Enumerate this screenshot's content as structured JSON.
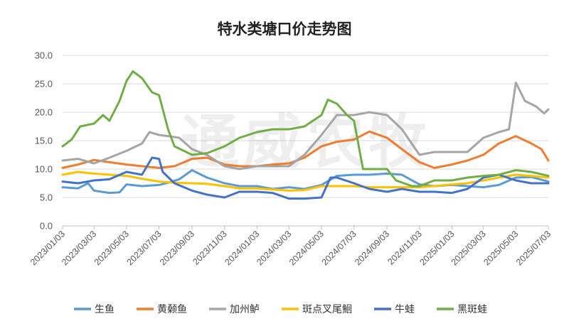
{
  "chart_data": {
    "type": "line",
    "title": "特水类塘口价走势图",
    "watermark": "通威农牧",
    "xlabel": "",
    "ylabel": "",
    "ylim": [
      0,
      30
    ],
    "yticks": [
      "0.0",
      "5.0",
      "10.0",
      "15.0",
      "20.0",
      "25.0",
      "30.0"
    ],
    "x_range": [
      "2023/01/03",
      "2025/07/03"
    ],
    "xticks": [
      "2023/01/03",
      "2023/03/03",
      "2023/05/03",
      "2023/07/03",
      "2023/09/03",
      "2023/11/03",
      "2024/01/03",
      "2024/03/03",
      "2024/05/03",
      "2024/07/03",
      "2024/09/03",
      "2024/11/03",
      "2025/01/03",
      "2025/03/03",
      "2025/05/03",
      "2025/07/03"
    ],
    "grid": "horizontal",
    "legend_position": "bottom",
    "series": [
      {
        "name": "生鱼",
        "color": "#5b9bd5",
        "points": [
          [
            "2023/01/03",
            6.8
          ],
          [
            "2023/02/01",
            6.6
          ],
          [
            "2023/02/20",
            7.5
          ],
          [
            "2023/03/03",
            6.2
          ],
          [
            "2023/04/01",
            5.8
          ],
          [
            "2023/04/20",
            5.9
          ],
          [
            "2023/05/03",
            7.3
          ],
          [
            "2023/06/01",
            7.0
          ],
          [
            "2023/07/03",
            7.2
          ],
          [
            "2023/07/20",
            7.6
          ],
          [
            "2023/08/10",
            8.2
          ],
          [
            "2023/09/03",
            9.8
          ],
          [
            "2023/10/01",
            8.5
          ],
          [
            "2023/11/03",
            7.5
          ],
          [
            "2023/12/01",
            7.0
          ],
          [
            "2024/01/03",
            7.0
          ],
          [
            "2024/02/01",
            6.5
          ],
          [
            "2024/03/03",
            6.8
          ],
          [
            "2024/04/01",
            6.5
          ],
          [
            "2024/05/03",
            7.2
          ],
          [
            "2024/06/01",
            8.8
          ],
          [
            "2024/07/03",
            9.0
          ],
          [
            "2024/08/01",
            9.0
          ],
          [
            "2024/09/03",
            9.2
          ],
          [
            "2024/10/01",
            9.0
          ],
          [
            "2024/10/20",
            8.0
          ],
          [
            "2024/11/03",
            7.3
          ],
          [
            "2024/12/01",
            7.0
          ],
          [
            "2025/01/03",
            7.2
          ],
          [
            "2025/02/01",
            7.0
          ],
          [
            "2025/03/03",
            6.8
          ],
          [
            "2025/04/01",
            7.2
          ],
          [
            "2025/05/03",
            8.5
          ],
          [
            "2025/06/01",
            8.6
          ],
          [
            "2025/07/03",
            7.8
          ]
        ]
      },
      {
        "name": "黄颡鱼",
        "color": "#ed7d31",
        "points": [
          [
            "2023/01/03",
            10.2
          ],
          [
            "2023/02/01",
            10.8
          ],
          [
            "2023/03/03",
            11.6
          ],
          [
            "2023/04/01",
            11.2
          ],
          [
            "2023/05/03",
            10.8
          ],
          [
            "2023/06/01",
            10.5
          ],
          [
            "2023/07/03",
            10.2
          ],
          [
            "2023/08/01",
            10.5
          ],
          [
            "2023/09/03",
            11.8
          ],
          [
            "2023/10/01",
            12.0
          ],
          [
            "2023/11/03",
            10.8
          ],
          [
            "2023/12/01",
            10.5
          ],
          [
            "2024/01/03",
            10.5
          ],
          [
            "2024/02/01",
            10.8
          ],
          [
            "2024/03/03",
            11.0
          ],
          [
            "2024/04/01",
            12.0
          ],
          [
            "2024/05/03",
            14.0
          ],
          [
            "2024/06/01",
            14.8
          ],
          [
            "2024/07/03",
            15.2
          ],
          [
            "2024/08/01",
            16.6
          ],
          [
            "2024/09/03",
            15.5
          ],
          [
            "2024/10/01",
            13.5
          ],
          [
            "2024/11/03",
            11.2
          ],
          [
            "2024/12/01",
            10.2
          ],
          [
            "2025/01/03",
            10.8
          ],
          [
            "2025/02/01",
            11.5
          ],
          [
            "2025/03/03",
            12.5
          ],
          [
            "2025/04/01",
            14.5
          ],
          [
            "2025/05/03",
            15.8
          ],
          [
            "2025/06/01",
            14.5
          ],
          [
            "2025/06/20",
            13.5
          ],
          [
            "2025/07/03",
            11.5
          ]
        ]
      },
      {
        "name": "加州鲈",
        "color": "#a5a5a5",
        "points": [
          [
            "2023/01/03",
            11.5
          ],
          [
            "2023/02/01",
            11.8
          ],
          [
            "2023/03/03",
            11.0
          ],
          [
            "2023/04/01",
            12.0
          ],
          [
            "2023/05/03",
            13.2
          ],
          [
            "2023/06/01",
            14.5
          ],
          [
            "2023/06/15",
            16.5
          ],
          [
            "2023/07/03",
            16.0
          ],
          [
            "2023/07/20",
            15.8
          ],
          [
            "2023/08/10",
            15.5
          ],
          [
            "2023/09/03",
            13.5
          ],
          [
            "2023/10/01",
            12.5
          ],
          [
            "2023/11/03",
            10.5
          ],
          [
            "2023/12/01",
            10.0
          ],
          [
            "2024/01/03",
            10.5
          ],
          [
            "2024/02/01",
            10.5
          ],
          [
            "2024/03/03",
            10.5
          ],
          [
            "2024/04/01",
            12.5
          ],
          [
            "2024/05/03",
            16.0
          ],
          [
            "2024/06/01",
            19.5
          ],
          [
            "2024/07/03",
            19.5
          ],
          [
            "2024/08/01",
            20.0
          ],
          [
            "2024/09/03",
            19.5
          ],
          [
            "2024/10/01",
            17.0
          ],
          [
            "2024/11/03",
            12.5
          ],
          [
            "2024/12/01",
            13.0
          ],
          [
            "2025/01/03",
            13.0
          ],
          [
            "2025/02/01",
            13.0
          ],
          [
            "2025/03/03",
            15.5
          ],
          [
            "2025/04/01",
            16.5
          ],
          [
            "2025/04/20",
            17.0
          ],
          [
            "2025/05/03",
            25.2
          ],
          [
            "2025/05/20",
            22.0
          ],
          [
            "2025/06/10",
            21.0
          ],
          [
            "2025/06/25",
            19.8
          ],
          [
            "2025/07/03",
            20.5
          ]
        ]
      },
      {
        "name": "斑点叉尾鮰",
        "color": "#ffc000",
        "points": [
          [
            "2023/01/03",
            9.0
          ],
          [
            "2023/02/01",
            9.5
          ],
          [
            "2023/03/03",
            9.2
          ],
          [
            "2023/04/01",
            9.0
          ],
          [
            "2023/05/03",
            8.8
          ],
          [
            "2023/06/01",
            8.3
          ],
          [
            "2023/07/03",
            7.8
          ],
          [
            "2023/08/01",
            7.6
          ],
          [
            "2023/09/03",
            7.5
          ],
          [
            "2023/10/01",
            7.4
          ],
          [
            "2023/11/03",
            7.0
          ],
          [
            "2023/12/01",
            6.6
          ],
          [
            "2024/01/03",
            6.6
          ],
          [
            "2024/02/01",
            6.4
          ],
          [
            "2024/03/03",
            6.2
          ],
          [
            "2024/04/01",
            6.3
          ],
          [
            "2024/05/03",
            7.0
          ],
          [
            "2024/06/01",
            7.0
          ],
          [
            "2024/07/03",
            7.0
          ],
          [
            "2024/08/01",
            6.8
          ],
          [
            "2024/09/03",
            6.8
          ],
          [
            "2024/10/01",
            6.8
          ],
          [
            "2024/11/03",
            6.8
          ],
          [
            "2024/12/01",
            7.0
          ],
          [
            "2025/01/03",
            7.3
          ],
          [
            "2025/02/01",
            7.5
          ],
          [
            "2025/03/03",
            8.0
          ],
          [
            "2025/04/01",
            8.5
          ],
          [
            "2025/05/03",
            9.0
          ],
          [
            "2025/06/01",
            8.8
          ],
          [
            "2025/07/03",
            8.5
          ]
        ]
      },
      {
        "name": "牛蛙",
        "color": "#4472c4",
        "points": [
          [
            "2023/01/03",
            7.8
          ],
          [
            "2023/02/01",
            7.5
          ],
          [
            "2023/03/03",
            8.0
          ],
          [
            "2023/04/01",
            8.2
          ],
          [
            "2023/05/03",
            9.5
          ],
          [
            "2023/06/01",
            9.0
          ],
          [
            "2023/06/20",
            12.0
          ],
          [
            "2023/07/03",
            11.8
          ],
          [
            "2023/07/10",
            9.5
          ],
          [
            "2023/08/01",
            7.5
          ],
          [
            "2023/09/03",
            6.2
          ],
          [
            "2023/10/01",
            5.5
          ],
          [
            "2023/11/03",
            5.0
          ],
          [
            "2023/12/01",
            6.0
          ],
          [
            "2024/01/03",
            6.0
          ],
          [
            "2024/02/01",
            5.8
          ],
          [
            "2024/03/03",
            4.8
          ],
          [
            "2024/04/01",
            4.8
          ],
          [
            "2024/05/03",
            5.0
          ],
          [
            "2024/05/20",
            8.5
          ],
          [
            "2024/06/01",
            8.5
          ],
          [
            "2024/07/03",
            7.5
          ],
          [
            "2024/08/01",
            6.5
          ],
          [
            "2024/09/03",
            6.0
          ],
          [
            "2024/10/01",
            6.5
          ],
          [
            "2024/11/03",
            6.0
          ],
          [
            "2024/12/01",
            6.0
          ],
          [
            "2025/01/03",
            5.8
          ],
          [
            "2025/02/01",
            6.5
          ],
          [
            "2025/03/03",
            8.5
          ],
          [
            "2025/04/01",
            9.0
          ],
          [
            "2025/05/03",
            8.0
          ],
          [
            "2025/06/01",
            7.5
          ],
          [
            "2025/07/03",
            7.5
          ]
        ]
      },
      {
        "name": "黑斑蛙",
        "color": "#70ad47",
        "points": [
          [
            "2023/01/03",
            14.0
          ],
          [
            "2023/01/20",
            15.2
          ],
          [
            "2023/02/05",
            17.5
          ],
          [
            "2023/03/03",
            18.0
          ],
          [
            "2023/03/20",
            19.5
          ],
          [
            "2023/04/01",
            18.5
          ],
          [
            "2023/04/20",
            22.0
          ],
          [
            "2023/05/03",
            25.5
          ],
          [
            "2023/05/15",
            27.2
          ],
          [
            "2023/06/01",
            26.0
          ],
          [
            "2023/06/20",
            23.5
          ],
          [
            "2023/07/03",
            23.0
          ],
          [
            "2023/07/20",
            17.0
          ],
          [
            "2023/08/01",
            14.0
          ],
          [
            "2023/09/03",
            12.5
          ],
          [
            "2023/10/01",
            12.8
          ],
          [
            "2023/11/03",
            14.0
          ],
          [
            "2023/12/01",
            15.5
          ],
          [
            "2024/01/03",
            16.5
          ],
          [
            "2024/02/01",
            17.0
          ],
          [
            "2024/03/03",
            17.0
          ],
          [
            "2024/04/01",
            17.5
          ],
          [
            "2024/05/03",
            19.5
          ],
          [
            "2024/05/15",
            22.2
          ],
          [
            "2024/06/01",
            21.5
          ],
          [
            "2024/06/20",
            19.5
          ],
          [
            "2024/07/03",
            18.5
          ],
          [
            "2024/07/20",
            10.0
          ],
          [
            "2024/09/03",
            10.0
          ],
          [
            "2024/09/20",
            8.0
          ],
          [
            "2024/10/20",
            7.0
          ],
          [
            "2024/11/03",
            7.0
          ],
          [
            "2024/12/01",
            8.0
          ],
          [
            "2025/01/03",
            8.0
          ],
          [
            "2025/02/01",
            8.5
          ],
          [
            "2025/03/03",
            8.8
          ],
          [
            "2025/04/01",
            9.0
          ],
          [
            "2025/05/03",
            9.8
          ],
          [
            "2025/06/01",
            9.5
          ],
          [
            "2025/07/03",
            8.8
          ]
        ]
      }
    ]
  }
}
